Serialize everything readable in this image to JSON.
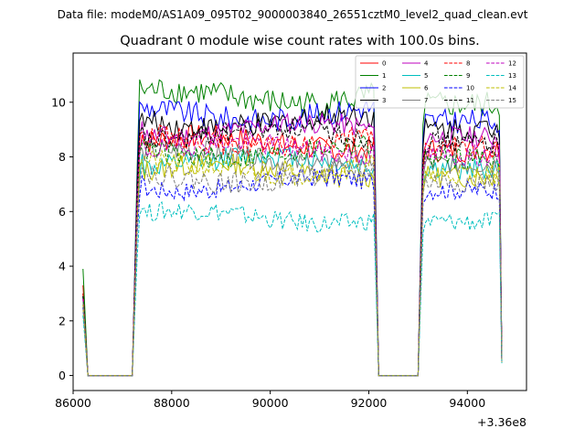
{
  "suptitle": "Data file: modeM0/AS1A09_095T02_9000003840_26551cztM0_level2_quad_clean.evt",
  "chart_data": {
    "type": "line",
    "title": "Quadrant 0 module wise count rates with 100.0s bins.",
    "xlabel": "",
    "ylabel": "",
    "x_offset_label": "+3.36e8",
    "xlim": [
      86000,
      95200
    ],
    "ylim": [
      -0.55,
      11.8
    ],
    "xticks": [
      86000,
      88000,
      90000,
      92000,
      94000
    ],
    "xtick_labels": [
      "86000",
      "88000",
      "90000",
      "92000",
      "94000"
    ],
    "yticks": [
      0,
      2,
      4,
      6,
      8,
      10
    ],
    "ytick_labels": [
      "0",
      "2",
      "4",
      "6",
      "8",
      "10"
    ],
    "grid": false,
    "legend_position": "top-right",
    "legend_columns": 4,
    "segments": [
      {
        "name": "initial",
        "x": [
          86200,
          86300
        ],
        "start_values": "start"
      },
      {
        "name": "gap1",
        "x": [
          86300,
          87200
        ],
        "value": 0
      },
      {
        "name": "orbit1",
        "x_start": 87200,
        "x_end": 92200
      },
      {
        "name": "gap2",
        "x": [
          92200,
          93000
        ],
        "value": 0
      },
      {
        "name": "orbit2",
        "x_start": 93000,
        "x_end": 94700
      }
    ],
    "series": [
      {
        "name": "0",
        "color": "#ff0000",
        "dash": "solid",
        "start": 3.3,
        "level": 8.5,
        "amp": 0.45,
        "end": 0.6
      },
      {
        "name": "1",
        "color": "#008000",
        "dash": "solid",
        "start": 3.9,
        "level": 10.2,
        "amp": 0.5,
        "end": 0.6
      },
      {
        "name": "2",
        "color": "#0000ff",
        "dash": "solid",
        "start": 2.9,
        "level": 9.6,
        "amp": 0.45,
        "end": 0.5
      },
      {
        "name": "3",
        "color": "#000000",
        "dash": "solid",
        "start": 3.0,
        "level": 9.3,
        "amp": 0.45,
        "end": 0.6
      },
      {
        "name": "4",
        "color": "#bf00bf",
        "dash": "solid",
        "start": 2.8,
        "level": 9.0,
        "amp": 0.4,
        "end": 0.6
      },
      {
        "name": "5",
        "color": "#00bfbf",
        "dash": "solid",
        "start": 2.6,
        "level": 7.8,
        "amp": 0.4,
        "end": 0.5
      },
      {
        "name": "6",
        "color": "#bfbf00",
        "dash": "solid",
        "start": 2.5,
        "level": 7.5,
        "amp": 0.4,
        "end": 0.5
      },
      {
        "name": "7",
        "color": "#808080",
        "dash": "solid",
        "start": 2.8,
        "level": 8.0,
        "amp": 0.4,
        "end": 0.6
      },
      {
        "name": "8",
        "color": "#ff0000",
        "dash": "dashed",
        "start": 3.0,
        "level": 8.6,
        "amp": 0.4,
        "end": 0.6
      },
      {
        "name": "9",
        "color": "#008000",
        "dash": "dashed",
        "start": 2.9,
        "level": 8.2,
        "amp": 0.4,
        "end": 0.6
      },
      {
        "name": "10",
        "color": "#0000ff",
        "dash": "dashed",
        "start": 2.5,
        "level": 7.0,
        "amp": 0.35,
        "end": 0.5
      },
      {
        "name": "11",
        "color": "#000000",
        "dash": "dashed",
        "start": 2.9,
        "level": 8.8,
        "amp": 0.4,
        "end": 0.6
      },
      {
        "name": "12",
        "color": "#bf00bf",
        "dash": "dashed",
        "start": 2.8,
        "level": 8.3,
        "amp": 0.4,
        "end": 0.6
      },
      {
        "name": "13",
        "color": "#00bfbf",
        "dash": "dashed",
        "start": 2.2,
        "level": 5.8,
        "amp": 0.35,
        "end": 0.45
      },
      {
        "name": "14",
        "color": "#bfbf00",
        "dash": "dashed",
        "start": 2.6,
        "level": 7.6,
        "amp": 0.4,
        "end": 0.5
      },
      {
        "name": "15",
        "color": "#808080",
        "dash": "dashed",
        "start": 2.7,
        "level": 7.3,
        "amp": 0.4,
        "end": 0.55
      }
    ]
  }
}
